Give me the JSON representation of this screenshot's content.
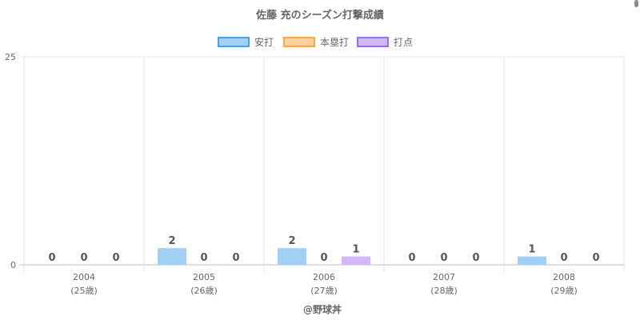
{
  "chart_data": {
    "type": "bar",
    "title": "佐藤 充のシーズン打撃成績",
    "categories": [
      "2004",
      "2005",
      "2006",
      "2007",
      "2008"
    ],
    "category_sublabels": [
      "(25歳)",
      "(26歳)",
      "(27歳)",
      "(28歳)",
      "(29歳)"
    ],
    "series": [
      {
        "name": "安打",
        "values": [
          0,
          2,
          2,
          0,
          1
        ],
        "color": "#a0d0f5",
        "border": "#4aa3e6"
      },
      {
        "name": "本塁打",
        "values": [
          0,
          0,
          0,
          0,
          0
        ],
        "color": "#fdcf9b",
        "border": "#fca64a"
      },
      {
        "name": "打点",
        "values": [
          0,
          0,
          1,
          0,
          0
        ],
        "color": "#d1b8fa",
        "border": "#9a6cf0"
      }
    ],
    "ylim": [
      0,
      25
    ],
    "yticks": [
      0,
      25
    ],
    "grid": true,
    "legend_position": "top",
    "data_labels": true,
    "credit": "@野球丼"
  }
}
